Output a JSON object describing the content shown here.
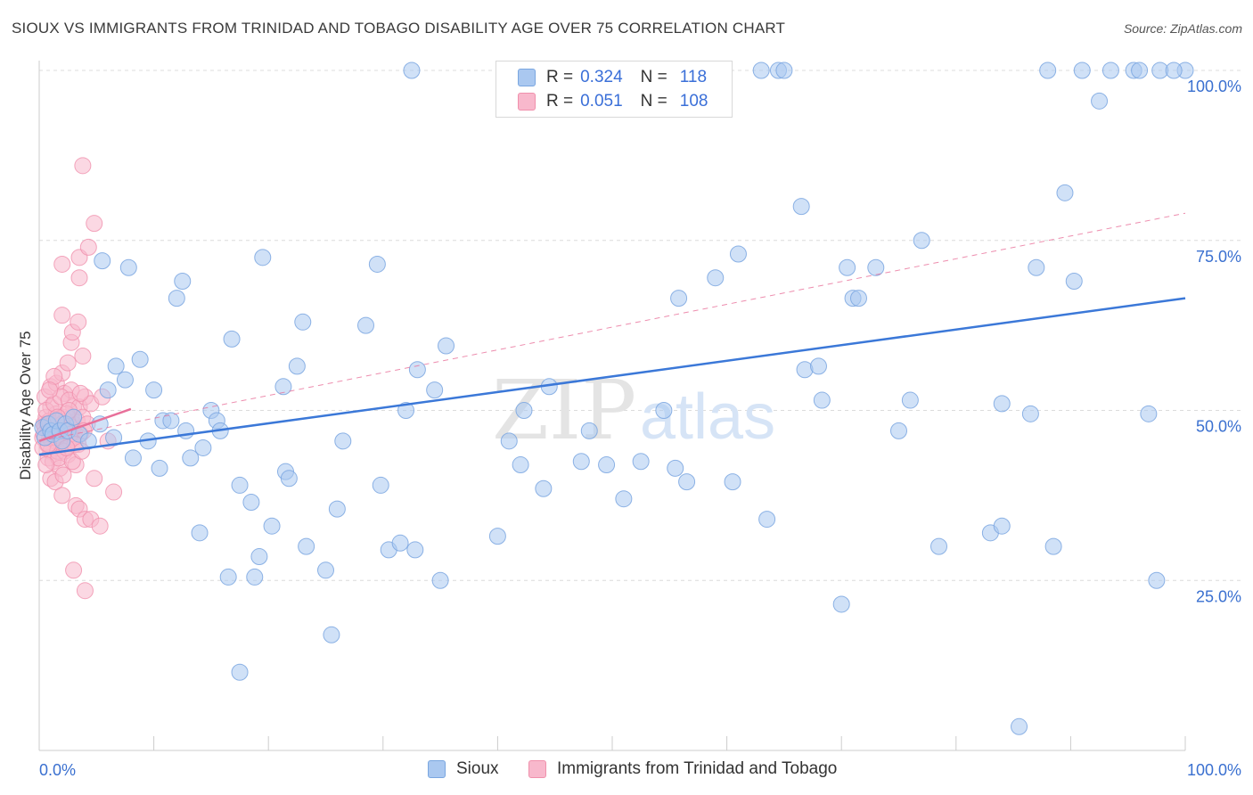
{
  "header": {
    "title": "SIOUX VS IMMIGRANTS FROM TRINIDAD AND TOBAGO DISABILITY AGE OVER 75 CORRELATION CHART",
    "source": "Source: ZipAtlas.com"
  },
  "legend": {
    "rows": [
      {
        "r_label": "R =",
        "r_value": "0.324",
        "n_label": "N =",
        "n_value": "118"
      },
      {
        "r_label": "R =",
        "r_value": "0.051",
        "n_label": "N =",
        "n_value": "108"
      }
    ]
  },
  "bottom_legend": [
    "Sioux",
    "Immigrants from Trinidad and Tobago"
  ],
  "watermark": {
    "zip": "ZIP",
    "atlas": "atlas"
  },
  "colors": {
    "sioux_fill": "#aac8f0",
    "sioux_stroke": "#7aa6e0",
    "sioux_line": "#3b78d8",
    "tt_fill": "#f8b8cc",
    "tt_stroke": "#f090ac",
    "tt_line": "#e8709a",
    "tick_text": "#3a70d0"
  },
  "chart_data": {
    "type": "scatter",
    "title": "SIOUX VS IMMIGRANTS FROM TRINIDAD AND TOBAGO DISABILITY AGE OVER 75 CORRELATION CHART",
    "xlabel": "",
    "ylabel": "Disability Age Over 75",
    "xlim": [
      0,
      100
    ],
    "ylim": [
      0,
      102
    ],
    "x_tick_labels": [
      "0.0%",
      "100.0%"
    ],
    "y_ticks": [
      25,
      50,
      75,
      100
    ],
    "y_tick_labels": [
      "25.0%",
      "50.0%",
      "75.0%",
      "100.0%"
    ],
    "grid": true,
    "series": [
      {
        "name": "Sioux",
        "r": 0.324,
        "n": 118,
        "trend": {
          "x0": 0,
          "y0": 43.5,
          "x1": 100,
          "y1": 66.5
        },
        "points": [
          [
            0.3,
            47.5
          ],
          [
            0.5,
            46
          ],
          [
            0.8,
            48
          ],
          [
            1.0,
            47
          ],
          [
            1.2,
            46.5
          ],
          [
            1.5,
            48.5
          ],
          [
            1.8,
            47
          ],
          [
            2.0,
            45.5
          ],
          [
            2.3,
            48
          ],
          [
            2.5,
            47
          ],
          [
            3.0,
            49
          ],
          [
            3.5,
            46.5
          ],
          [
            4.3,
            45.5
          ],
          [
            5.3,
            48
          ],
          [
            5.5,
            72
          ],
          [
            6.0,
            53
          ],
          [
            6.5,
            46
          ],
          [
            6.7,
            56.5
          ],
          [
            7.5,
            54.5
          ],
          [
            7.8,
            71
          ],
          [
            8.2,
            43
          ],
          [
            8.8,
            57.5
          ],
          [
            9.5,
            45.5
          ],
          [
            10.0,
            53
          ],
          [
            10.5,
            41.5
          ],
          [
            10.8,
            48.5
          ],
          [
            11.5,
            48.5
          ],
          [
            12.0,
            66.5
          ],
          [
            12.5,
            69
          ],
          [
            12.8,
            47
          ],
          [
            13.2,
            43
          ],
          [
            14.0,
            32
          ],
          [
            14.3,
            44.5
          ],
          [
            15.0,
            50
          ],
          [
            15.5,
            48.5
          ],
          [
            15.8,
            47
          ],
          [
            16.5,
            25.5
          ],
          [
            16.8,
            60.5
          ],
          [
            17.5,
            39
          ],
          [
            17.5,
            11.5
          ],
          [
            18.5,
            36.5
          ],
          [
            18.8,
            25.5
          ],
          [
            19.2,
            28.5
          ],
          [
            19.5,
            72.5
          ],
          [
            20.3,
            33
          ],
          [
            21.3,
            53.5
          ],
          [
            21.5,
            41
          ],
          [
            21.8,
            40
          ],
          [
            22.5,
            56.5
          ],
          [
            23.0,
            63
          ],
          [
            23.3,
            30
          ],
          [
            25.0,
            26.5
          ],
          [
            25.5,
            17
          ],
          [
            26.0,
            35.5
          ],
          [
            26.5,
            45.5
          ],
          [
            28.5,
            62.5
          ],
          [
            29.5,
            71.5
          ],
          [
            29.8,
            39
          ],
          [
            30.5,
            29.5
          ],
          [
            31.5,
            30.5
          ],
          [
            32.0,
            50
          ],
          [
            32.5,
            100
          ],
          [
            32.8,
            29.5
          ],
          [
            33.0,
            56
          ],
          [
            34.5,
            53
          ],
          [
            35.0,
            25
          ],
          [
            35.5,
            59.5
          ],
          [
            40.0,
            31.5
          ],
          [
            41.0,
            45.5
          ],
          [
            42.0,
            42
          ],
          [
            42.3,
            50
          ],
          [
            44.0,
            38.5
          ],
          [
            44.5,
            53.5
          ],
          [
            47.3,
            42.5
          ],
          [
            48.0,
            47
          ],
          [
            49.5,
            42
          ],
          [
            51.0,
            37
          ],
          [
            52.5,
            42.5
          ],
          [
            54.5,
            50
          ],
          [
            55.5,
            41.5
          ],
          [
            55.8,
            66.5
          ],
          [
            56.5,
            39.5
          ],
          [
            59.0,
            69.5
          ],
          [
            60.5,
            39.5
          ],
          [
            61.0,
            73
          ],
          [
            63.0,
            100
          ],
          [
            63.5,
            34
          ],
          [
            64.5,
            100
          ],
          [
            65.0,
            100
          ],
          [
            66.5,
            80
          ],
          [
            66.8,
            56
          ],
          [
            68.0,
            56.5
          ],
          [
            68.3,
            51.5
          ],
          [
            70.0,
            21.5
          ],
          [
            70.5,
            71
          ],
          [
            71.0,
            66.5
          ],
          [
            71.5,
            66.5
          ],
          [
            73.0,
            71
          ],
          [
            75.0,
            47
          ],
          [
            76.0,
            51.5
          ],
          [
            77.0,
            75
          ],
          [
            78.5,
            30
          ],
          [
            83.0,
            32
          ],
          [
            84.0,
            51
          ],
          [
            84.0,
            33
          ],
          [
            85.5,
            3.5
          ],
          [
            86.5,
            49.5
          ],
          [
            87.0,
            71
          ],
          [
            88.0,
            100
          ],
          [
            88.5,
            30
          ],
          [
            89.5,
            82
          ],
          [
            90.3,
            69
          ],
          [
            91.0,
            100
          ],
          [
            92.5,
            95.5
          ],
          [
            93.5,
            100
          ],
          [
            95.5,
            100
          ],
          [
            96.0,
            100
          ],
          [
            96.8,
            49.5
          ],
          [
            97.5,
            25
          ],
          [
            97.8,
            100
          ],
          [
            100.0,
            100
          ],
          [
            99.0,
            100
          ]
        ]
      },
      {
        "name": "Immigrants from Trinidad and Tobago",
        "r": 0.051,
        "n": 108,
        "trend": {
          "x0": 0,
          "y0": 45.5,
          "x1": 8,
          "y1": 50.2
        },
        "trend_dashed": {
          "x0": 0,
          "y0": 45.5,
          "x1": 100,
          "y1": 79
        },
        "points": [
          [
            0.3,
            46
          ],
          [
            0.4,
            48
          ],
          [
            0.5,
            47.5
          ],
          [
            0.6,
            49
          ],
          [
            0.7,
            45
          ],
          [
            0.8,
            47
          ],
          [
            0.9,
            48.5
          ],
          [
            1.0,
            50.5
          ],
          [
            1.0,
            44
          ],
          [
            1.1,
            46.5
          ],
          [
            1.2,
            48
          ],
          [
            1.3,
            47
          ],
          [
            1.4,
            45.5
          ],
          [
            1.5,
            49.5
          ],
          [
            1.6,
            47
          ],
          [
            1.7,
            46
          ],
          [
            1.8,
            48.5
          ],
          [
            1.9,
            45
          ],
          [
            2.0,
            47.5
          ],
          [
            2.1,
            49
          ],
          [
            2.2,
            46.5
          ],
          [
            2.3,
            44.5
          ],
          [
            2.4,
            48
          ],
          [
            2.5,
            47
          ],
          [
            2.6,
            45.5
          ],
          [
            2.7,
            46
          ],
          [
            2.8,
            49
          ],
          [
            2.9,
            47
          ],
          [
            3.0,
            48
          ],
          [
            3.1,
            46
          ],
          [
            0.5,
            52
          ],
          [
            0.8,
            43
          ],
          [
            1.0,
            53.5
          ],
          [
            1.2,
            42.5
          ],
          [
            1.5,
            54
          ],
          [
            1.8,
            41.5
          ],
          [
            2.0,
            55.5
          ],
          [
            2.2,
            52.5
          ],
          [
            2.5,
            43.5
          ],
          [
            2.8,
            53
          ],
          [
            3.0,
            50.5
          ],
          [
            3.2,
            42
          ],
          [
            0.3,
            44.5
          ],
          [
            0.6,
            50
          ],
          [
            0.9,
            46
          ],
          [
            1.3,
            51
          ],
          [
            1.6,
            44
          ],
          [
            1.9,
            52
          ],
          [
            2.2,
            44
          ],
          [
            2.6,
            51.5
          ],
          [
            3.0,
            47.5
          ],
          [
            3.3,
            48.5
          ],
          [
            3.5,
            50.5
          ],
          [
            3.6,
            46.5
          ],
          [
            3.8,
            49
          ],
          [
            4.0,
            52
          ],
          [
            4.2,
            48
          ],
          [
            4.5,
            51
          ],
          [
            3.6,
            52.5
          ],
          [
            3.4,
            45
          ],
          [
            1.0,
            40
          ],
          [
            1.4,
            39.5
          ],
          [
            2.0,
            37.5
          ],
          [
            3.2,
            36
          ],
          [
            3.5,
            35.5
          ],
          [
            4.0,
            34
          ],
          [
            4.5,
            34
          ],
          [
            4.8,
            40
          ],
          [
            5.3,
            33
          ],
          [
            6.5,
            38
          ],
          [
            3.8,
            58
          ],
          [
            2.5,
            57
          ],
          [
            2.8,
            60
          ],
          [
            2.9,
            61.5
          ],
          [
            3.4,
            63
          ],
          [
            2.0,
            64
          ],
          [
            3.5,
            69.5
          ],
          [
            2.0,
            71.5
          ],
          [
            3.5,
            72.5
          ],
          [
            4.3,
            74
          ],
          [
            4.8,
            77.5
          ],
          [
            3.8,
            86
          ],
          [
            3.0,
            26.5
          ],
          [
            4.0,
            23.5
          ],
          [
            6.0,
            45.5
          ],
          [
            5.5,
            52
          ],
          [
            1.8,
            46.5
          ],
          [
            2.4,
            49.5
          ],
          [
            0.7,
            48
          ],
          [
            1.1,
            47
          ],
          [
            1.5,
            46
          ],
          [
            2.0,
            48
          ],
          [
            2.3,
            47
          ],
          [
            2.7,
            46.5
          ],
          [
            3.1,
            45
          ],
          [
            0.4,
            46.5
          ],
          [
            1.7,
            43
          ],
          [
            2.9,
            42.5
          ],
          [
            3.7,
            44
          ],
          [
            1.3,
            55
          ],
          [
            0.9,
            53
          ],
          [
            2.1,
            40.5
          ],
          [
            0.6,
            42
          ],
          [
            3.9,
            47
          ],
          [
            2.6,
            50
          ],
          [
            1.6,
            49
          ],
          [
            0.8,
            45
          ],
          [
            2.4,
            44.5
          ]
        ]
      }
    ]
  }
}
